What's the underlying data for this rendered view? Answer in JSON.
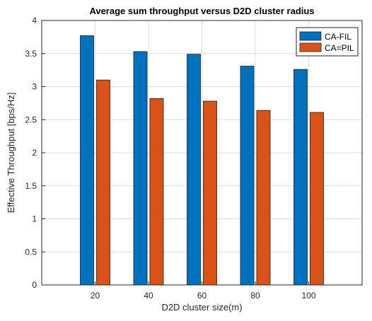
{
  "chart_data": {
    "type": "bar",
    "title": "Average sum throughput versus D2D cluster radius",
    "xlabel": "D2D cluster size(m)",
    "ylabel": "Effective Throughput [bps/Hz]",
    "categories": [
      "20",
      "40",
      "60",
      "80",
      "100"
    ],
    "series": [
      {
        "name": "CA-FIL",
        "values": [
          3.77,
          3.53,
          3.49,
          3.31,
          3.26
        ],
        "color": "#0072BD"
      },
      {
        "name": "CA=PIL",
        "values": [
          3.1,
          2.82,
          2.78,
          2.64,
          2.61
        ],
        "color": "#D95319"
      }
    ],
    "ylim": [
      0,
      4
    ],
    "yticks": [
      "0",
      "0.5",
      "1",
      "1.5",
      "2",
      "2.5",
      "3",
      "3.5",
      "4"
    ],
    "grid": true,
    "legend_position": "top-right"
  }
}
